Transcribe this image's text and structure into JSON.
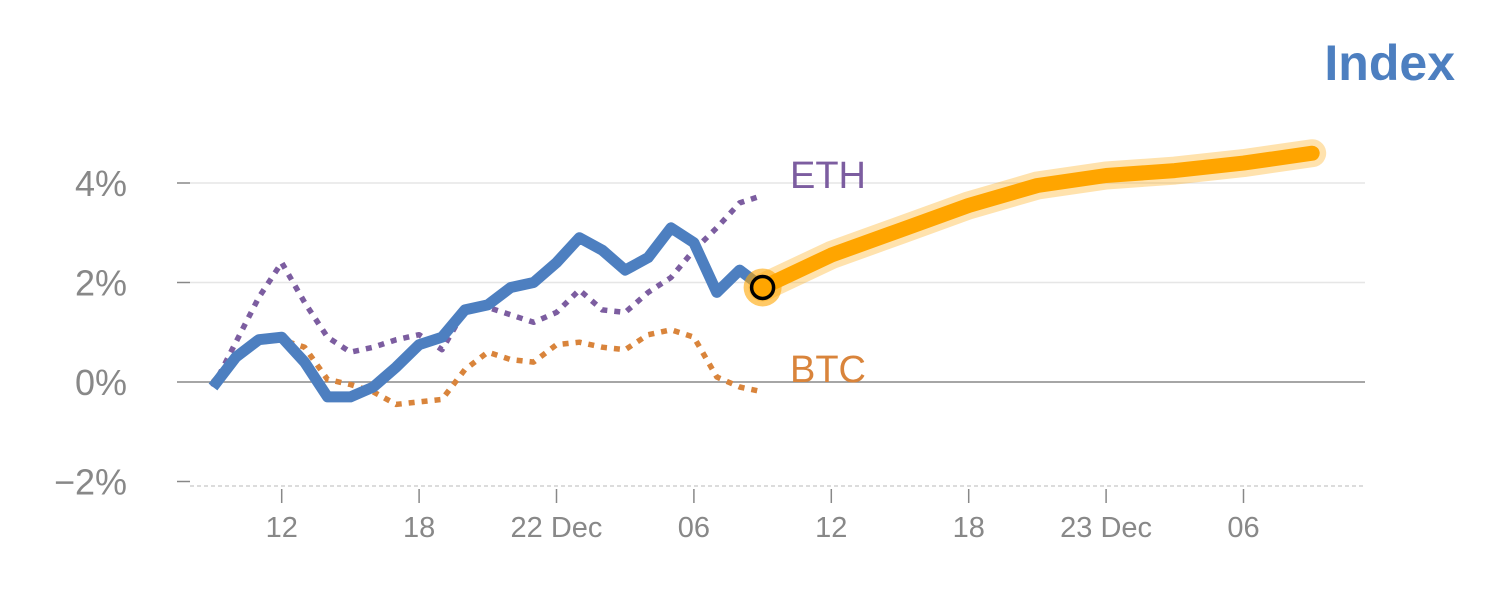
{
  "chart_data": {
    "type": "line",
    "title": "Index",
    "xlabel": "",
    "ylabel": "",
    "ylim": [
      -2,
      4
    ],
    "y_ticks": [
      -2,
      0,
      2,
      4
    ],
    "y_tick_labels": [
      "−2%",
      "0%",
      "2%",
      "4%"
    ],
    "x_ticks": [
      {
        "x": 3,
        "label": "12"
      },
      {
        "x": 9,
        "label": "18"
      },
      {
        "x": 15,
        "label": "22 Dec"
      },
      {
        "x": 21,
        "label": "06"
      },
      {
        "x": 27,
        "label": "12"
      },
      {
        "x": 33,
        "label": "18"
      },
      {
        "x": 39,
        "label": "23 Dec"
      },
      {
        "x": 45,
        "label": "06"
      }
    ],
    "grid": true,
    "colors": {
      "index": "#4d7fc0",
      "eth": "#7c5da0",
      "btc": "#d9843b",
      "forecast": "#ffa500",
      "title": "#4d7fc0",
      "tick_label": "#888888"
    },
    "series": [
      {
        "key": "index",
        "name": "",
        "style": "solid",
        "x": [
          0,
          1,
          2,
          3,
          4,
          5,
          6,
          7,
          8,
          9,
          10,
          11,
          12,
          13,
          14,
          15,
          16,
          17,
          18,
          19,
          20,
          21,
          22,
          23,
          24
        ],
        "y": [
          -0.1,
          0.5,
          0.85,
          0.9,
          0.4,
          -0.3,
          -0.3,
          -0.1,
          0.3,
          0.75,
          0.9,
          1.45,
          1.55,
          1.9,
          2.0,
          2.4,
          2.9,
          2.65,
          2.25,
          2.5,
          3.1,
          2.8,
          1.8,
          2.25,
          1.9
        ]
      },
      {
        "key": "eth",
        "name": "ETH",
        "style": "dotted",
        "x": [
          0,
          1,
          2,
          3,
          4,
          5,
          6,
          7,
          8,
          9,
          10,
          11,
          12,
          13,
          14,
          15,
          16,
          17,
          18,
          19,
          20,
          21,
          22,
          23,
          24
        ],
        "y": [
          -0.1,
          0.8,
          1.7,
          2.4,
          1.6,
          0.9,
          0.6,
          0.7,
          0.85,
          0.95,
          0.65,
          1.45,
          1.5,
          1.35,
          1.2,
          1.4,
          1.85,
          1.45,
          1.4,
          1.8,
          2.1,
          2.65,
          3.1,
          3.6,
          3.75
        ]
      },
      {
        "key": "btc",
        "name": "BTC",
        "style": "dotted",
        "x": [
          0,
          1,
          2,
          3,
          4,
          5,
          6,
          7,
          8,
          9,
          10,
          11,
          12,
          13,
          14,
          15,
          16,
          17,
          18,
          19,
          20,
          21,
          22,
          23,
          24
        ],
        "y": [
          0.0,
          0.5,
          0.8,
          0.85,
          0.7,
          0.05,
          -0.05,
          -0.2,
          -0.45,
          -0.4,
          -0.35,
          0.25,
          0.6,
          0.45,
          0.4,
          0.75,
          0.8,
          0.7,
          0.65,
          0.95,
          1.05,
          0.9,
          0.1,
          -0.1,
          -0.2
        ]
      },
      {
        "key": "forecast",
        "name": "",
        "style": "thick",
        "x": [
          24,
          27,
          30,
          33,
          36,
          39,
          42,
          45,
          48
        ],
        "y": [
          1.9,
          2.55,
          3.05,
          3.55,
          3.95,
          4.15,
          4.25,
          4.4,
          4.6
        ]
      }
    ],
    "markers": [
      {
        "series": "forecast",
        "x": 24,
        "y": 1.9,
        "shape": "circle"
      }
    ]
  }
}
